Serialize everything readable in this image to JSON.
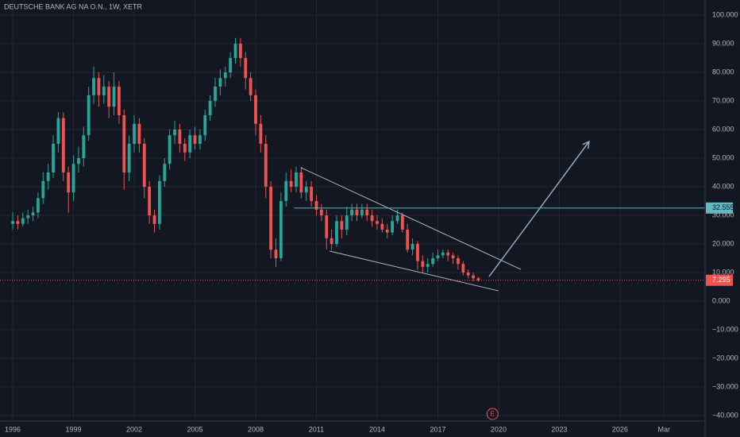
{
  "chart_data": {
    "type": "candlestick",
    "title": "DEUTSCHE BANK AG NA O.N., 1W, XETR",
    "up_color": "#26a69a",
    "down_color": "#ef5350",
    "x": [
      1996,
      1996.25,
      1996.5,
      1996.75,
      1997,
      1997.25,
      1997.5,
      1997.75,
      1998,
      1998.25,
      1998.5,
      1998.75,
      1999,
      1999.25,
      1999.5,
      1999.75,
      2000,
      2000.25,
      2000.5,
      2000.75,
      2001,
      2001.25,
      2001.5,
      2001.75,
      2002,
      2002.25,
      2002.5,
      2002.75,
      2003,
      2003.25,
      2003.5,
      2003.75,
      2004,
      2004.25,
      2004.5,
      2004.75,
      2005,
      2005.25,
      2005.5,
      2005.75,
      2006,
      2006.25,
      2006.5,
      2006.75,
      2007,
      2007.25,
      2007.5,
      2007.75,
      2008,
      2008.25,
      2008.5,
      2008.75,
      2009,
      2009.25,
      2009.5,
      2009.75,
      2010,
      2010.25,
      2010.5,
      2010.75,
      2011,
      2011.25,
      2011.5,
      2011.75,
      2012,
      2012.25,
      2012.5,
      2012.75,
      2013,
      2013.25,
      2013.5,
      2013.75,
      2014,
      2014.25,
      2014.5,
      2014.75,
      2015,
      2015.25,
      2015.5,
      2015.75,
      2016,
      2016.25,
      2016.5,
      2016.75,
      2017,
      2017.25,
      2017.5,
      2017.75,
      2018,
      2018.25,
      2018.5,
      2018.75,
      2019
    ],
    "open": [
      27,
      28,
      27,
      29,
      30,
      31,
      36,
      42,
      45,
      55,
      64,
      45,
      38,
      48,
      50,
      58,
      72,
      78,
      72,
      75,
      68,
      75,
      65,
      45,
      55,
      62,
      55,
      40,
      30,
      27,
      42,
      48,
      58,
      60,
      55,
      52,
      58,
      55,
      58,
      65,
      70,
      75,
      78,
      80,
      85,
      90,
      85,
      78,
      72,
      62,
      55,
      40,
      18,
      15,
      35,
      42,
      40,
      45,
      38,
      40,
      35,
      32,
      30,
      22,
      20,
      28,
      25,
      30,
      32,
      30,
      32,
      30,
      28,
      27,
      25,
      24,
      28,
      30,
      25,
      18,
      20,
      14,
      12,
      13,
      15,
      16,
      17,
      16,
      15,
      13,
      10,
      9,
      8
    ],
    "high": [
      31,
      30,
      31,
      32,
      33,
      38,
      45,
      48,
      58,
      66,
      66,
      47,
      51,
      54,
      61,
      75,
      82,
      80,
      79,
      77,
      80,
      77,
      67,
      58,
      65,
      64,
      57,
      42,
      32,
      44,
      50,
      60,
      63,
      62,
      57,
      60,
      61,
      60,
      67,
      72,
      78,
      81,
      82,
      87,
      92,
      92,
      87,
      80,
      74,
      65,
      58,
      42,
      22,
      38,
      45,
      46,
      47,
      47,
      42,
      42,
      37,
      34,
      32,
      25,
      30,
      30,
      33,
      34,
      34,
      34,
      34,
      32,
      30,
      29,
      27,
      30,
      32,
      31,
      27,
      22,
      21,
      16,
      15,
      17,
      18,
      18,
      18,
      17,
      16,
      14,
      11,
      10,
      8.5
    ],
    "low": [
      25,
      25,
      26,
      27,
      28,
      29,
      34,
      39,
      43,
      52,
      42,
      31,
      35,
      45,
      47,
      56,
      69,
      68,
      69,
      64,
      65,
      62,
      39,
      42,
      52,
      52,
      36,
      27,
      24,
      25,
      40,
      46,
      55,
      52,
      49,
      50,
      53,
      53,
      56,
      63,
      68,
      72,
      75,
      78,
      83,
      82,
      74,
      70,
      58,
      52,
      36,
      15,
      12,
      14,
      33,
      38,
      38,
      36,
      35,
      33,
      30,
      28,
      18,
      18,
      19,
      22,
      23,
      28,
      28,
      29,
      28,
      26,
      25,
      24,
      22,
      23,
      27,
      24,
      17,
      16,
      11,
      10,
      10,
      12,
      14,
      15,
      14,
      13,
      11,
      9,
      8,
      7,
      6.8
    ],
    "close": [
      28,
      27,
      29,
      30,
      31,
      36,
      42,
      45,
      55,
      64,
      45,
      38,
      48,
      50,
      58,
      72,
      78,
      72,
      75,
      68,
      75,
      65,
      45,
      55,
      62,
      55,
      40,
      30,
      27,
      42,
      48,
      58,
      60,
      55,
      52,
      58,
      55,
      58,
      65,
      70,
      75,
      78,
      80,
      85,
      90,
      85,
      78,
      72,
      62,
      55,
      40,
      18,
      15,
      35,
      42,
      40,
      45,
      38,
      40,
      35,
      32,
      30,
      22,
      20,
      28,
      25,
      30,
      32,
      30,
      32,
      30,
      28,
      27,
      25,
      24,
      28,
      30,
      25,
      18,
      20,
      14,
      12,
      13,
      15,
      16,
      17,
      16,
      15,
      13,
      10,
      9,
      8,
      7.295
    ],
    "xlim": [
      1995.37,
      2030.2
    ],
    "ylim": [
      105.28,
      -41.94
    ],
    "xticks": [
      1996,
      1999,
      2002,
      2005,
      2008,
      2011,
      2014,
      2017,
      2020,
      2023,
      2026,
      {
        "value": 2028.17,
        "label": "Mar"
      }
    ],
    "yticks": [
      {
        "value": 100,
        "label": "100.000"
      },
      {
        "value": 90,
        "label": "90.000"
      },
      {
        "value": 80,
        "label": "80.000"
      },
      {
        "value": 70,
        "label": "70.000"
      },
      {
        "value": 60,
        "label": "60.000"
      },
      {
        "value": 50,
        "label": "50.000"
      },
      {
        "value": 40,
        "label": "40.000"
      },
      {
        "value": 30,
        "label": "30.000"
      },
      {
        "value": 20,
        "label": "20.000"
      },
      {
        "value": 10,
        "label": "10.000"
      },
      {
        "value": 0,
        "label": "0.000"
      },
      {
        "value": -10,
        "label": "−10.000"
      },
      {
        "value": -20,
        "label": "−20.000"
      },
      {
        "value": -30,
        "label": "−30.000"
      },
      {
        "value": -40,
        "label": "−40.000"
      }
    ],
    "grid": true,
    "last_price": 7.295,
    "last_price_color": "#ef5350",
    "level": {
      "value": 32.555,
      "start_x": 2009.9,
      "color": "#5fb8c4"
    },
    "trendlines": [
      {
        "x": [
          2010.24,
          2021.1
        ],
        "y": [
          46.67,
          11.1
        ]
      },
      {
        "x": [
          2011.65,
          2020.0
        ],
        "y": [
          17.5,
          3.6
        ]
      }
    ],
    "trendline_color": "#b2b5be",
    "arrow": {
      "x": [
        2019.53,
        2022.04,
        2024.47
      ],
      "y": [
        8.6,
        32.5,
        55.8
      ],
      "color": "#8fa9bd"
    },
    "earnings_marker": {
      "label": "E",
      "x": 2019.7
    }
  }
}
